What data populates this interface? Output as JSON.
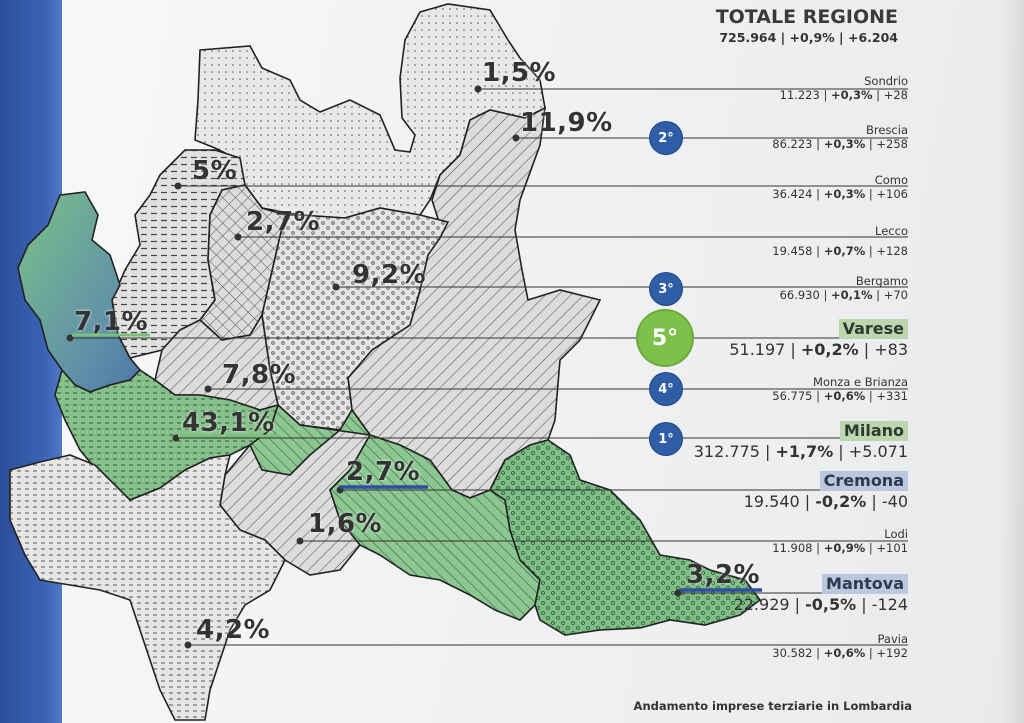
{
  "header": {
    "title": "TOTALE REGIONE",
    "values": "725.964 | +0,9% | +6.204"
  },
  "map_labels": [
    {
      "key": "sondrio",
      "text": "1,5%"
    },
    {
      "key": "brescia",
      "text": "11,9%"
    },
    {
      "key": "como",
      "text": "5%"
    },
    {
      "key": "lecco",
      "text": "2,7%"
    },
    {
      "key": "bergamo",
      "text": "9,2%"
    },
    {
      "key": "varese",
      "text": "7,1%"
    },
    {
      "key": "monza",
      "text": "7,8%"
    },
    {
      "key": "milano",
      "text": "43,1%"
    },
    {
      "key": "cremona",
      "text": "2,7%"
    },
    {
      "key": "lodi",
      "text": "1,6%"
    },
    {
      "key": "mantova",
      "text": "3,2%"
    },
    {
      "key": "pavia",
      "text": "4,2%"
    }
  ],
  "provinces": [
    {
      "name": "Sondrio",
      "total": "11.223",
      "pct": "+0,3%",
      "delta": "+28"
    },
    {
      "name": "Brescia",
      "total": "86.223",
      "pct": "+0,3%",
      "delta": "+258",
      "rank": "2°"
    },
    {
      "name": "Como",
      "total": "36.424",
      "pct": "+0,3%",
      "delta": "+106"
    },
    {
      "name": "Lecco",
      "total": "19.458",
      "pct": "+0,7%",
      "delta": "+128"
    },
    {
      "name": "Bergamo",
      "total": "66.930",
      "pct": "+0,1%",
      "delta": "+70",
      "rank": "3°"
    },
    {
      "name": "Varese",
      "total": "51.197",
      "pct": "+0,2%",
      "delta": "+83",
      "rank": "5°"
    },
    {
      "name": "Monza e Brianza",
      "total": "56.775",
      "pct": "+0,6%",
      "delta": "+331",
      "rank": "4°"
    },
    {
      "name": "Milano",
      "total": "312.775",
      "pct": "+1,7%",
      "delta": "+5.071",
      "rank": "1°"
    },
    {
      "name": "Cremona",
      "total": "19.540",
      "pct": "-0,2%",
      "delta": "-40"
    },
    {
      "name": "Lodi",
      "total": "11.908",
      "pct": "+0,9%",
      "delta": "+101"
    },
    {
      "name": "Mantova",
      "total": "22.929",
      "pct": "-0,5%",
      "delta": "-124"
    },
    {
      "name": "Pavia",
      "total": "30.582",
      "pct": "+0,6%",
      "delta": "+192"
    }
  ],
  "caption": "Andamento imprese terziarie in Lombardia",
  "colors": {
    "blue_band": "#3a62b5",
    "badge_blue": "#2f5ea6",
    "badge_green": "#7ec04a",
    "green_region": "#7fbf85",
    "grey_region": "#d8d8d8",
    "cremona_underline": "#2f4fa0"
  }
}
